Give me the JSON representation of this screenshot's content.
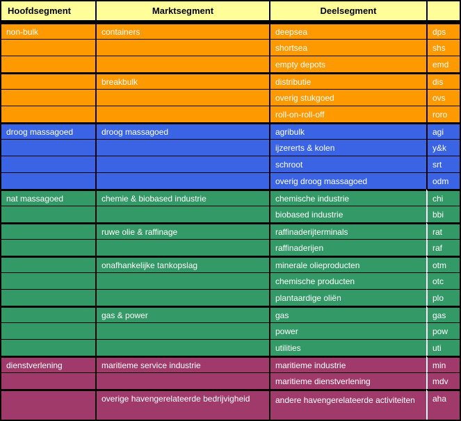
{
  "colors": {
    "header_bg": "#FFFF99",
    "header_text": "#000000",
    "body_text": "#FFFFFF",
    "border": "#000000"
  },
  "table": {
    "header": {
      "columns": [
        "Hoofdsegment",
        "Marktsegment",
        "Deelsegment",
        ""
      ]
    },
    "sections": {
      "non-bulk": {
        "bg": "#FF9900",
        "code_divider": "#000000"
      },
      "droog massagoed": {
        "bg": "#3A64E4",
        "code_divider": "#000000"
      },
      "nat massagoed": {
        "bg": "#339966",
        "code_divider": "#FFFFFF"
      },
      "dienstverlening": {
        "bg": "#A03A6A",
        "code_divider": "#FFFFFF"
      }
    },
    "rows": [
      {
        "hoofdsegment": "non-bulk",
        "marktsegment": "containers",
        "deelsegment": "deepsea",
        "code": "dps",
        "section": "non-bulk",
        "group_start": true,
        "double_height": false
      },
      {
        "hoofdsegment": "",
        "marktsegment": "",
        "deelsegment": "shortsea",
        "code": "shs",
        "section": "non-bulk",
        "group_start": false,
        "double_height": false
      },
      {
        "hoofdsegment": "",
        "marktsegment": "",
        "deelsegment": "empty depots",
        "code": "emd",
        "section": "non-bulk",
        "group_start": false,
        "double_height": false
      },
      {
        "hoofdsegment": "",
        "marktsegment": "breakbulk",
        "deelsegment": "distributie",
        "code": "dis",
        "section": "non-bulk",
        "group_start": true,
        "double_height": false
      },
      {
        "hoofdsegment": "",
        "marktsegment": "",
        "deelsegment": "overig stukgoed",
        "code": "ovs",
        "section": "non-bulk",
        "group_start": false,
        "double_height": false
      },
      {
        "hoofdsegment": "",
        "marktsegment": "",
        "deelsegment": "roll-on-roll-off",
        "code": "roro",
        "section": "non-bulk",
        "group_start": false,
        "double_height": false
      },
      {
        "hoofdsegment": "droog massagoed",
        "marktsegment": "droog massagoed",
        "deelsegment": "agribulk",
        "code": "agi",
        "section": "droog massagoed",
        "group_start": true,
        "double_height": false
      },
      {
        "hoofdsegment": "",
        "marktsegment": "",
        "deelsegment": "ijzererts & kolen",
        "code": "y&k",
        "section": "droog massagoed",
        "group_start": false,
        "double_height": false
      },
      {
        "hoofdsegment": "",
        "marktsegment": "",
        "deelsegment": "schroot",
        "code": "srt",
        "section": "droog massagoed",
        "group_start": false,
        "double_height": false
      },
      {
        "hoofdsegment": "",
        "marktsegment": "",
        "deelsegment": "overig droog massagoed",
        "code": "odm",
        "section": "droog massagoed",
        "group_start": false,
        "double_height": false
      },
      {
        "hoofdsegment": "nat massagoed",
        "marktsegment": "chemie & biobased industrie",
        "deelsegment": "chemische industrie",
        "code": "chi",
        "section": "nat massagoed",
        "group_start": true,
        "double_height": false
      },
      {
        "hoofdsegment": "",
        "marktsegment": "",
        "deelsegment": "biobased industrie",
        "code": "bbi",
        "section": "nat massagoed",
        "group_start": false,
        "double_height": false
      },
      {
        "hoofdsegment": "",
        "marktsegment": "ruwe olie & raffinage",
        "deelsegment": "raffinaderijterminals",
        "code": "rat",
        "section": "nat massagoed",
        "group_start": true,
        "double_height": false
      },
      {
        "hoofdsegment": "",
        "marktsegment": "",
        "deelsegment": "raffinaderijen",
        "code": "raf",
        "section": "nat massagoed",
        "group_start": false,
        "double_height": false
      },
      {
        "hoofdsegment": "",
        "marktsegment": "onafhankelijke tankopslag",
        "deelsegment": "minerale olieproducten",
        "code": "otm",
        "section": "nat massagoed",
        "group_start": true,
        "double_height": false
      },
      {
        "hoofdsegment": "",
        "marktsegment": "",
        "deelsegment": "chemische producten",
        "code": "otc",
        "section": "nat massagoed",
        "group_start": false,
        "double_height": false
      },
      {
        "hoofdsegment": "",
        "marktsegment": "",
        "deelsegment": "plantaardige oliën",
        "code": "plo",
        "section": "nat massagoed",
        "group_start": false,
        "double_height": false
      },
      {
        "hoofdsegment": "",
        "marktsegment": "gas & power",
        "deelsegment": "gas",
        "code": "gas",
        "section": "nat massagoed",
        "group_start": true,
        "double_height": false
      },
      {
        "hoofdsegment": "",
        "marktsegment": "",
        "deelsegment": "power",
        "code": "pow",
        "section": "nat massagoed",
        "group_start": false,
        "double_height": false
      },
      {
        "hoofdsegment": "",
        "marktsegment": "",
        "deelsegment": "utilities",
        "code": "uti",
        "section": "nat massagoed",
        "group_start": false,
        "double_height": false
      },
      {
        "hoofdsegment": "dienstverlening",
        "marktsegment": "maritieme service industrie",
        "deelsegment": "maritieme industrie",
        "code": "min",
        "section": "dienstverlening",
        "group_start": true,
        "double_height": false
      },
      {
        "hoofdsegment": "",
        "marktsegment": "",
        "deelsegment": "maritieme dienstverlening",
        "code": "mdv",
        "section": "dienstverlening",
        "group_start": false,
        "double_height": false
      },
      {
        "hoofdsegment": "",
        "marktsegment": "overige havengerelateerde bedrijvigheid",
        "deelsegment": "andere havengerelateerde activiteiten",
        "code": "aha",
        "section": "dienstverlening",
        "group_start": true,
        "double_height": true
      }
    ]
  },
  "chart_data": {
    "type": "table",
    "title": "",
    "columns": [
      "Hoofdsegment",
      "Marktsegment",
      "Deelsegment",
      ""
    ],
    "rows": [
      [
        "non-bulk",
        "containers",
        "deepsea",
        "dps"
      ],
      [
        "",
        "",
        "shortsea",
        "shs"
      ],
      [
        "",
        "",
        "empty depots",
        "emd"
      ],
      [
        "",
        "breakbulk",
        "distributie",
        "dis"
      ],
      [
        "",
        "",
        "overig stukgoed",
        "ovs"
      ],
      [
        "",
        "",
        "roll-on-roll-off",
        "roro"
      ],
      [
        "droog massagoed",
        "droog massagoed",
        "agribulk",
        "agi"
      ],
      [
        "",
        "",
        "ijzererts & kolen",
        "y&k"
      ],
      [
        "",
        "",
        "schroot",
        "srt"
      ],
      [
        "",
        "",
        "overig droog massagoed",
        "odm"
      ],
      [
        "nat massagoed",
        "chemie & biobased industrie",
        "chemische industrie",
        "chi"
      ],
      [
        "",
        "",
        "biobased industrie",
        "bbi"
      ],
      [
        "",
        "ruwe olie & raffinage",
        "raffinaderijterminals",
        "rat"
      ],
      [
        "",
        "",
        "raffinaderijen",
        "raf"
      ],
      [
        "",
        "onafhankelijke tankopslag",
        "minerale olieproducten",
        "otm"
      ],
      [
        "",
        "",
        "chemische producten",
        "otc"
      ],
      [
        "",
        "",
        "plantaardige oliën",
        "plo"
      ],
      [
        "",
        "gas & power",
        "gas",
        "gas"
      ],
      [
        "",
        "",
        "power",
        "pow"
      ],
      [
        "",
        "",
        "utilities",
        "uti"
      ],
      [
        "dienstverlening",
        "maritieme service industrie",
        "maritieme industrie",
        "min"
      ],
      [
        "",
        "",
        "maritieme dienstverlening",
        "mdv"
      ],
      [
        "",
        "overige havengerelateerde bedrijvigheid",
        "andere havengerelateerde activiteiten",
        "aha"
      ]
    ],
    "section_colors": [
      {
        "name": "non-bulk",
        "color": "#FF9900",
        "row_start": 0,
        "row_end": 5
      },
      {
        "name": "droog massagoed",
        "color": "#3A64E4",
        "row_start": 6,
        "row_end": 9
      },
      {
        "name": "nat massagoed",
        "color": "#339966",
        "row_start": 10,
        "row_end": 19
      },
      {
        "name": "dienstverlening",
        "color": "#A03A6A",
        "row_start": 20,
        "row_end": 22
      }
    ],
    "layout": {
      "header_bg": "#FFFF99",
      "grid": true,
      "body_text_color": "#FFFFFF"
    }
  }
}
